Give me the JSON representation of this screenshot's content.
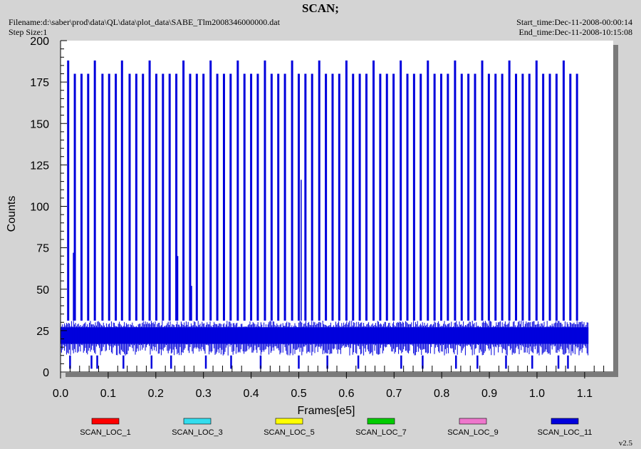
{
  "header": {
    "title": "SCAN;",
    "filename": "Filename:d:\\saber\\prod\\data\\QL\\data\\plot_data\\SABE_Tlm2008346000000.dat",
    "step_size": "Step Size:1",
    "start_time": "Start_time:Dec-11-2008-00:00:14",
    "end_time": "End_time:Dec-11-2008-10:15:08"
  },
  "version": "v2.5",
  "colors": {
    "background": "#d4d4d4",
    "plot_background": "#ffffff",
    "shadow": "#7a7a7a"
  },
  "chart_data": {
    "type": "line",
    "title": "SCAN;",
    "xlabel": "Frames[e5]",
    "ylabel": "Counts",
    "xlim": [
      0.0,
      1.16
    ],
    "ylim": [
      0,
      200
    ],
    "xticks": [
      "0.0",
      "0.1",
      "0.2",
      "0.3",
      "0.4",
      "0.5",
      "0.6",
      "0.7",
      "0.8",
      "0.9",
      "1.0",
      "1.1"
    ],
    "yticks": [
      "0",
      "25",
      "50",
      "75",
      "100",
      "125",
      "150",
      "175",
      "200"
    ],
    "grid": false,
    "legend_position": "bottom",
    "baseline_band": {
      "x_range": [
        0.0,
        1.108
      ],
      "min": 10,
      "max": 31,
      "typical_low": 17,
      "typical_high": 27
    },
    "spikes": [
      {
        "x": 0.016,
        "y": 188
      },
      {
        "x": 0.03,
        "y": 180
      },
      {
        "x": 0.044,
        "y": 180
      },
      {
        "x": 0.058,
        "y": 180
      },
      {
        "x": 0.072,
        "y": 188
      },
      {
        "x": 0.088,
        "y": 180
      },
      {
        "x": 0.102,
        "y": 180
      },
      {
        "x": 0.116,
        "y": 180
      },
      {
        "x": 0.129,
        "y": 188
      },
      {
        "x": 0.145,
        "y": 180
      },
      {
        "x": 0.159,
        "y": 180
      },
      {
        "x": 0.173,
        "y": 180
      },
      {
        "x": 0.187,
        "y": 188
      },
      {
        "x": 0.201,
        "y": 180
      },
      {
        "x": 0.215,
        "y": 180
      },
      {
        "x": 0.229,
        "y": 180
      },
      {
        "x": 0.243,
        "y": 180
      },
      {
        "x": 0.258,
        "y": 188
      },
      {
        "x": 0.272,
        "y": 180
      },
      {
        "x": 0.286,
        "y": 180
      },
      {
        "x": 0.3,
        "y": 180
      },
      {
        "x": 0.315,
        "y": 188
      },
      {
        "x": 0.329,
        "y": 180
      },
      {
        "x": 0.343,
        "y": 180
      },
      {
        "x": 0.357,
        "y": 180
      },
      {
        "x": 0.372,
        "y": 188
      },
      {
        "x": 0.386,
        "y": 180
      },
      {
        "x": 0.4,
        "y": 180
      },
      {
        "x": 0.414,
        "y": 180
      },
      {
        "x": 0.429,
        "y": 188
      },
      {
        "x": 0.443,
        "y": 180
      },
      {
        "x": 0.457,
        "y": 180
      },
      {
        "x": 0.471,
        "y": 180
      },
      {
        "x": 0.486,
        "y": 188
      },
      {
        "x": 0.5,
        "y": 180
      },
      {
        "x": 0.514,
        "y": 180
      },
      {
        "x": 0.528,
        "y": 180
      },
      {
        "x": 0.543,
        "y": 188
      },
      {
        "x": 0.557,
        "y": 180
      },
      {
        "x": 0.571,
        "y": 180
      },
      {
        "x": 0.585,
        "y": 180
      },
      {
        "x": 0.6,
        "y": 188
      },
      {
        "x": 0.614,
        "y": 180
      },
      {
        "x": 0.628,
        "y": 180
      },
      {
        "x": 0.642,
        "y": 180
      },
      {
        "x": 0.657,
        "y": 188
      },
      {
        "x": 0.671,
        "y": 180
      },
      {
        "x": 0.685,
        "y": 180
      },
      {
        "x": 0.699,
        "y": 180
      },
      {
        "x": 0.714,
        "y": 188
      },
      {
        "x": 0.728,
        "y": 180
      },
      {
        "x": 0.742,
        "y": 180
      },
      {
        "x": 0.756,
        "y": 180
      },
      {
        "x": 0.771,
        "y": 188
      },
      {
        "x": 0.785,
        "y": 180
      },
      {
        "x": 0.799,
        "y": 180
      },
      {
        "x": 0.813,
        "y": 180
      },
      {
        "x": 0.828,
        "y": 188
      },
      {
        "x": 0.842,
        "y": 180
      },
      {
        "x": 0.856,
        "y": 180
      },
      {
        "x": 0.87,
        "y": 180
      },
      {
        "x": 0.885,
        "y": 188
      },
      {
        "x": 0.899,
        "y": 180
      },
      {
        "x": 0.913,
        "y": 180
      },
      {
        "x": 0.927,
        "y": 180
      },
      {
        "x": 0.942,
        "y": 188
      },
      {
        "x": 0.956,
        "y": 180
      },
      {
        "x": 0.97,
        "y": 180
      },
      {
        "x": 0.984,
        "y": 180
      },
      {
        "x": 0.999,
        "y": 188
      },
      {
        "x": 1.013,
        "y": 180
      },
      {
        "x": 1.027,
        "y": 180
      },
      {
        "x": 1.041,
        "y": 180
      },
      {
        "x": 1.056,
        "y": 188
      },
      {
        "x": 1.07,
        "y": 180
      },
      {
        "x": 1.084,
        "y": 180
      }
    ],
    "dips": [
      0.02,
      0.065,
      0.077,
      0.132,
      0.191,
      0.232,
      0.305,
      0.358,
      0.42,
      0.5,
      0.56,
      0.625,
      0.715,
      0.76,
      0.83,
      0.875,
      0.935,
      0.99,
      1.045,
      1.065
    ],
    "short_spikes": [
      {
        "x": 0.027,
        "y": 72
      },
      {
        "x": 0.246,
        "y": 70
      },
      {
        "x": 0.275,
        "y": 52
      },
      {
        "x": 0.505,
        "y": 116
      }
    ],
    "series": [
      {
        "name": "SCAN_LOC_1",
        "color": "#ff0000"
      },
      {
        "name": "SCAN_LOC_3",
        "color": "#33ddee"
      },
      {
        "name": "SCAN_LOC_5",
        "color": "#ffff00"
      },
      {
        "name": "SCAN_LOC_7",
        "color": "#00cc00"
      },
      {
        "name": "SCAN_LOC_9",
        "color": "#ee77cc"
      },
      {
        "name": "SCAN_LOC_11",
        "color": "#0000dd"
      }
    ]
  }
}
